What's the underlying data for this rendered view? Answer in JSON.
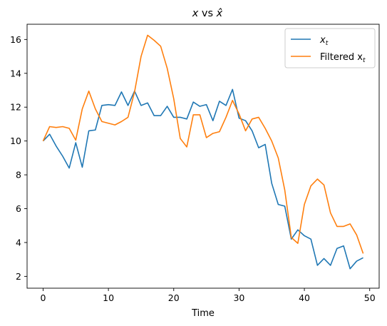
{
  "chart_data": {
    "type": "line",
    "title": "x vs x̂",
    "xlabel": "Time",
    "ylabel": "",
    "xlim": [
      -2.45,
      51.45
    ],
    "ylim": [
      1.3,
      16.9
    ],
    "xticks": [
      0,
      10,
      20,
      30,
      40,
      50
    ],
    "yticks": [
      2,
      4,
      6,
      8,
      10,
      12,
      14,
      16
    ],
    "grid": false,
    "legend_position": "top-right",
    "x": [
      0,
      1,
      2,
      3,
      4,
      5,
      6,
      7,
      8,
      9,
      10,
      11,
      12,
      13,
      14,
      15,
      16,
      17,
      18,
      19,
      20,
      21,
      22,
      23,
      24,
      25,
      26,
      27,
      28,
      29,
      30,
      31,
      32,
      33,
      34,
      35,
      36,
      37,
      38,
      39,
      40,
      41,
      42,
      43,
      44,
      45,
      46,
      47,
      48,
      49
    ],
    "series": [
      {
        "name": "x_t",
        "color": "#1f77b4",
        "values": [
          10.0,
          10.4,
          9.7,
          9.1,
          8.4,
          9.9,
          8.45,
          10.6,
          10.65,
          12.1,
          12.15,
          12.1,
          12.9,
          12.1,
          12.95,
          12.1,
          12.25,
          11.5,
          11.5,
          12.05,
          11.4,
          11.4,
          11.3,
          12.3,
          12.05,
          12.15,
          11.2,
          12.35,
          12.1,
          13.05,
          11.35,
          11.2,
          10.6,
          9.6,
          9.8,
          7.5,
          6.25,
          6.15,
          4.2,
          4.75,
          4.4,
          4.2,
          2.65,
          3.05,
          2.65,
          3.65,
          3.8,
          2.45,
          2.9,
          3.1
        ]
      },
      {
        "name": "Filtered x_t",
        "color": "#ff7f0e",
        "values": [
          10.0,
          10.85,
          10.8,
          10.85,
          10.75,
          10.05,
          11.9,
          12.95,
          11.9,
          11.15,
          11.05,
          10.95,
          11.15,
          11.4,
          12.9,
          15.0,
          16.25,
          15.95,
          15.6,
          14.3,
          12.5,
          10.15,
          9.65,
          11.55,
          11.55,
          10.2,
          10.45,
          10.55,
          11.4,
          12.4,
          11.6,
          10.6,
          11.3,
          11.4,
          10.75,
          10.0,
          9.0,
          7.1,
          4.3,
          3.95,
          6.25,
          7.35,
          7.75,
          7.4,
          5.75,
          4.95,
          4.95,
          5.1,
          4.45,
          3.35
        ]
      }
    ]
  },
  "legend": {
    "series0_main": "x",
    "series0_sub": "t",
    "series1_main": "Filtered x",
    "series1_sub": "t"
  },
  "title_parts": {
    "x": "x",
    "vs": " vs ",
    "xhat": "x̂"
  }
}
